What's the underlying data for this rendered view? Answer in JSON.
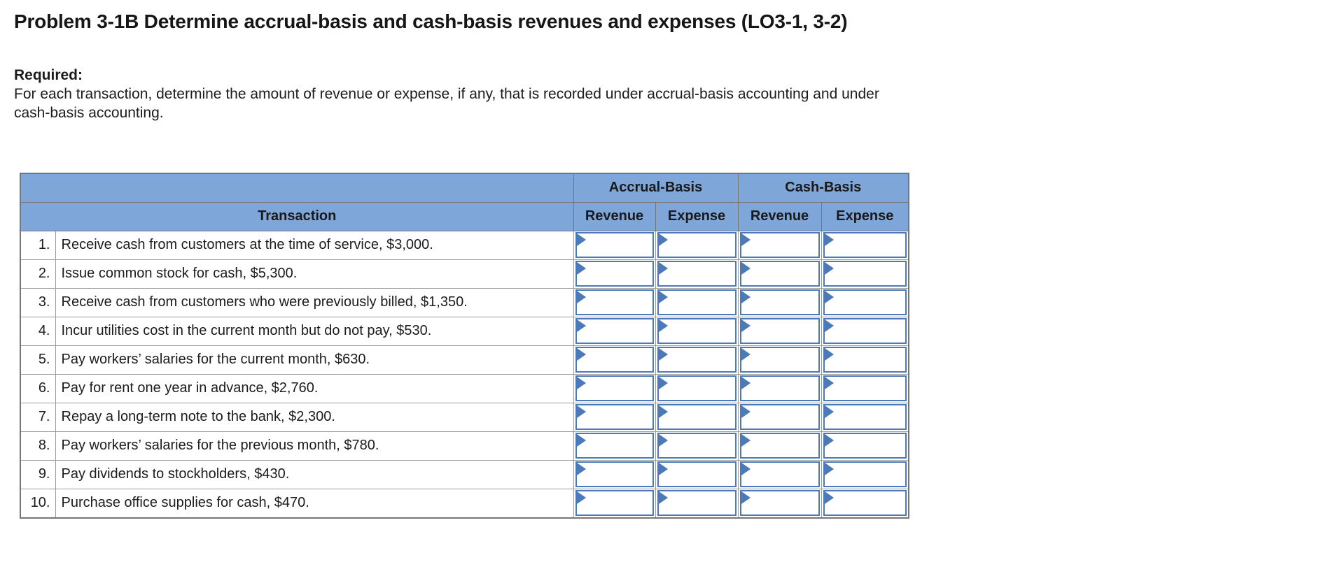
{
  "page": {
    "title": "Problem 3-1B Determine accrual-basis and cash-basis revenues and expenses (LO3-1, 3-2)",
    "required_label": "Required:",
    "instructions_line1": "For each transaction, determine the amount of revenue or expense, if any, that is recorded under accrual-basis accounting and under",
    "instructions_line2": "cash-basis accounting."
  },
  "table": {
    "group_headers": {
      "accrual": "Accrual-Basis",
      "cash": "Cash-Basis"
    },
    "column_headers": {
      "transaction": "Transaction",
      "revenue": "Revenue",
      "expense": "Expense"
    },
    "rows": [
      {
        "num": "1.",
        "text": "Receive cash from customers at the time of service, $3,000.",
        "accrual_revenue": "",
        "accrual_expense": "",
        "cash_revenue": "",
        "cash_expense": ""
      },
      {
        "num": "2.",
        "text": "Issue common stock for cash, $5,300.",
        "accrual_revenue": "",
        "accrual_expense": "",
        "cash_revenue": "",
        "cash_expense": ""
      },
      {
        "num": "3.",
        "text": "Receive cash from customers who were previously billed, $1,350.",
        "accrual_revenue": "",
        "accrual_expense": "",
        "cash_revenue": "",
        "cash_expense": ""
      },
      {
        "num": "4.",
        "text": "Incur utilities cost in the current month but do not pay, $530.",
        "accrual_revenue": "",
        "accrual_expense": "",
        "cash_revenue": "",
        "cash_expense": ""
      },
      {
        "num": "5.",
        "text": "Pay workers’ salaries for the current month, $630.",
        "accrual_revenue": "",
        "accrual_expense": "",
        "cash_revenue": "",
        "cash_expense": ""
      },
      {
        "num": "6.",
        "text": "Pay for rent one year in advance, $2,760.",
        "accrual_revenue": "",
        "accrual_expense": "",
        "cash_revenue": "",
        "cash_expense": ""
      },
      {
        "num": "7.",
        "text": "Repay a long-term note to the bank, $2,300.",
        "accrual_revenue": "",
        "accrual_expense": "",
        "cash_revenue": "",
        "cash_expense": ""
      },
      {
        "num": "8.",
        "text": "Pay workers’ salaries for the previous month, $780.",
        "accrual_revenue": "",
        "accrual_expense": "",
        "cash_revenue": "",
        "cash_expense": ""
      },
      {
        "num": "9.",
        "text": "Pay dividends to stockholders, $430.",
        "accrual_revenue": "",
        "accrual_expense": "",
        "cash_revenue": "",
        "cash_expense": ""
      },
      {
        "num": "10.",
        "text": "Purchase office supplies for cash, $470.",
        "accrual_revenue": "",
        "accrual_expense": "",
        "cash_revenue": "",
        "cash_expense": ""
      }
    ]
  },
  "icons": {
    "input_marker_icon": "right-pointing-triangle"
  },
  "colors": {
    "header_bg": "#7EA6D9",
    "input_border": "#4C79B7",
    "grid_border": "#9B9B9B",
    "outer_border": "#767676"
  }
}
